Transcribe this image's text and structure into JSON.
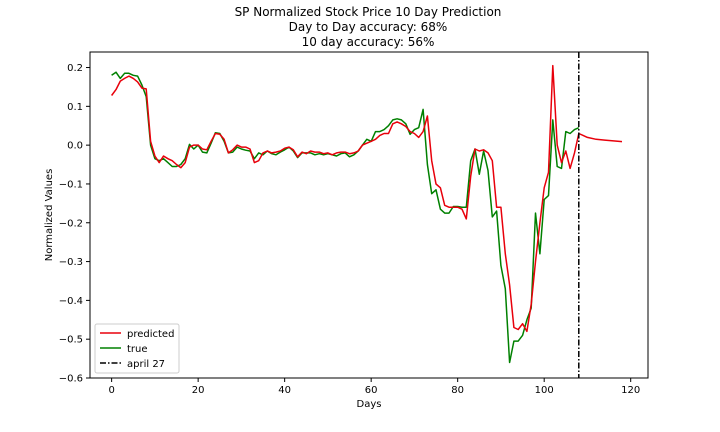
{
  "chart_data": {
    "type": "line",
    "title": [
      "SP Normalized Stock Price 10 Day Prediction",
      "Day to Day accuracy: 68%",
      "10 day accuracy: 56%"
    ],
    "xlabel": "Days",
    "ylabel": "Normalized Values",
    "xlim": [
      -5,
      124
    ],
    "ylim": [
      -0.6,
      0.24
    ],
    "x_ticks": [
      0,
      20,
      40,
      60,
      80,
      100,
      120
    ],
    "x_tick_labels": [
      "0",
      "20",
      "40",
      "60",
      "80",
      "100",
      "120"
    ],
    "y_ticks": [
      0.2,
      0.1,
      0.0,
      -0.1,
      -0.2,
      -0.3,
      -0.4,
      -0.5,
      -0.6
    ],
    "y_tick_labels": [
      "0.2",
      "0.1",
      "0.0",
      "−0.1",
      "−0.2",
      "−0.3",
      "−0.4",
      "−0.5",
      "−0.6"
    ],
    "grid": false,
    "legend_position": "lower-left",
    "series": [
      {
        "name": "predicted",
        "color": "#e8000b",
        "style": "solid",
        "x": [
          0,
          1,
          2,
          3,
          4,
          5,
          6,
          7,
          8,
          9,
          10,
          11,
          12,
          13,
          14,
          15,
          16,
          17,
          18,
          19,
          20,
          21,
          22,
          23,
          24,
          25,
          26,
          27,
          28,
          29,
          30,
          31,
          32,
          33,
          34,
          35,
          36,
          37,
          38,
          39,
          40,
          41,
          42,
          43,
          44,
          45,
          46,
          47,
          48,
          49,
          50,
          51,
          52,
          53,
          54,
          55,
          56,
          57,
          58,
          59,
          60,
          61,
          62,
          63,
          64,
          65,
          66,
          67,
          68,
          69,
          70,
          71,
          72,
          73,
          74,
          75,
          76,
          77,
          78,
          79,
          80,
          81,
          82,
          83,
          84,
          85,
          86,
          87,
          88,
          89,
          90,
          91,
          92,
          93,
          94,
          95,
          96,
          97,
          98,
          99,
          100,
          101,
          102,
          103,
          104,
          105,
          106,
          107,
          108,
          109,
          110,
          112,
          114,
          116,
          118
        ],
        "y": [
          0.128,
          0.143,
          0.165,
          0.172,
          0.178,
          0.172,
          0.163,
          0.147,
          0.145,
          0.01,
          -0.028,
          -0.045,
          -0.028,
          -0.035,
          -0.04,
          -0.05,
          -0.058,
          -0.045,
          -0.005,
          0.0,
          0.0,
          -0.01,
          -0.012,
          0.01,
          0.03,
          0.028,
          0.015,
          -0.02,
          -0.012,
          0.0,
          -0.005,
          -0.005,
          -0.01,
          -0.045,
          -0.04,
          -0.02,
          -0.015,
          -0.02,
          -0.018,
          -0.015,
          -0.008,
          -0.005,
          -0.012,
          -0.03,
          -0.018,
          -0.022,
          -0.015,
          -0.018,
          -0.018,
          -0.022,
          -0.02,
          -0.025,
          -0.02,
          -0.018,
          -0.018,
          -0.022,
          -0.02,
          -0.015,
          0.0,
          0.005,
          0.01,
          0.015,
          0.025,
          0.03,
          0.03,
          0.055,
          0.06,
          0.055,
          0.048,
          0.035,
          0.03,
          0.02,
          0.035,
          0.075,
          -0.04,
          -0.1,
          -0.11,
          -0.155,
          -0.16,
          -0.16,
          -0.16,
          -0.165,
          -0.19,
          -0.08,
          -0.01,
          -0.015,
          -0.012,
          -0.02,
          -0.04,
          -0.16,
          -0.16,
          -0.28,
          -0.36,
          -0.47,
          -0.475,
          -0.46,
          -0.48,
          -0.41,
          -0.3,
          -0.2,
          -0.11,
          -0.07,
          0.205,
          0.0,
          -0.045,
          -0.015,
          -0.06,
          -0.02,
          0.03,
          0.025,
          0.02,
          0.015,
          0.013,
          0.011,
          0.009
        ]
      },
      {
        "name": "true",
        "color": "#008000",
        "style": "solid",
        "x": [
          0,
          1,
          2,
          3,
          4,
          5,
          6,
          7,
          8,
          9,
          10,
          11,
          12,
          13,
          14,
          15,
          16,
          17,
          18,
          19,
          20,
          21,
          22,
          23,
          24,
          25,
          26,
          27,
          28,
          29,
          30,
          31,
          32,
          33,
          34,
          35,
          36,
          37,
          38,
          39,
          40,
          41,
          42,
          43,
          44,
          45,
          46,
          47,
          48,
          49,
          50,
          51,
          52,
          53,
          54,
          55,
          56,
          57,
          58,
          59,
          60,
          61,
          62,
          63,
          64,
          65,
          66,
          67,
          68,
          69,
          70,
          71,
          72,
          73,
          74,
          75,
          76,
          77,
          78,
          79,
          80,
          81,
          82,
          83,
          84,
          85,
          86,
          87,
          88,
          89,
          90,
          91,
          92,
          93,
          94,
          95,
          96,
          97,
          98,
          99,
          100,
          101,
          102,
          103,
          104,
          105,
          106,
          107,
          108
        ],
        "y": [
          0.18,
          0.188,
          0.172,
          0.185,
          0.185,
          0.18,
          0.178,
          0.155,
          0.125,
          0.0,
          -0.035,
          -0.04,
          -0.035,
          -0.045,
          -0.055,
          -0.055,
          -0.05,
          -0.035,
          0.002,
          -0.01,
          0.0,
          -0.018,
          -0.02,
          0.005,
          0.032,
          0.03,
          0.01,
          -0.02,
          -0.018,
          -0.005,
          -0.01,
          -0.013,
          -0.015,
          -0.035,
          -0.02,
          -0.025,
          -0.015,
          -0.022,
          -0.025,
          -0.018,
          -0.012,
          -0.005,
          -0.015,
          -0.032,
          -0.02,
          -0.02,
          -0.02,
          -0.025,
          -0.022,
          -0.025,
          -0.022,
          -0.025,
          -0.028,
          -0.022,
          -0.02,
          -0.03,
          -0.025,
          -0.015,
          0.0,
          0.015,
          0.01,
          0.035,
          0.035,
          0.04,
          0.05,
          0.065,
          0.068,
          0.065,
          0.055,
          0.028,
          0.04,
          0.045,
          0.092,
          -0.05,
          -0.125,
          -0.115,
          -0.165,
          -0.175,
          -0.175,
          -0.158,
          -0.158,
          -0.16,
          -0.16,
          -0.04,
          -0.01,
          -0.075,
          -0.015,
          -0.065,
          -0.185,
          -0.17,
          -0.31,
          -0.37,
          -0.56,
          -0.505,
          -0.505,
          -0.49,
          -0.45,
          -0.42,
          -0.175,
          -0.28,
          -0.14,
          -0.13,
          0.065,
          -0.055,
          -0.06,
          0.035,
          0.03,
          0.04,
          0.045
        ]
      }
    ],
    "marker_line": {
      "name": "april 27",
      "x": 108,
      "color": "#000000",
      "style": "dashdot"
    }
  }
}
